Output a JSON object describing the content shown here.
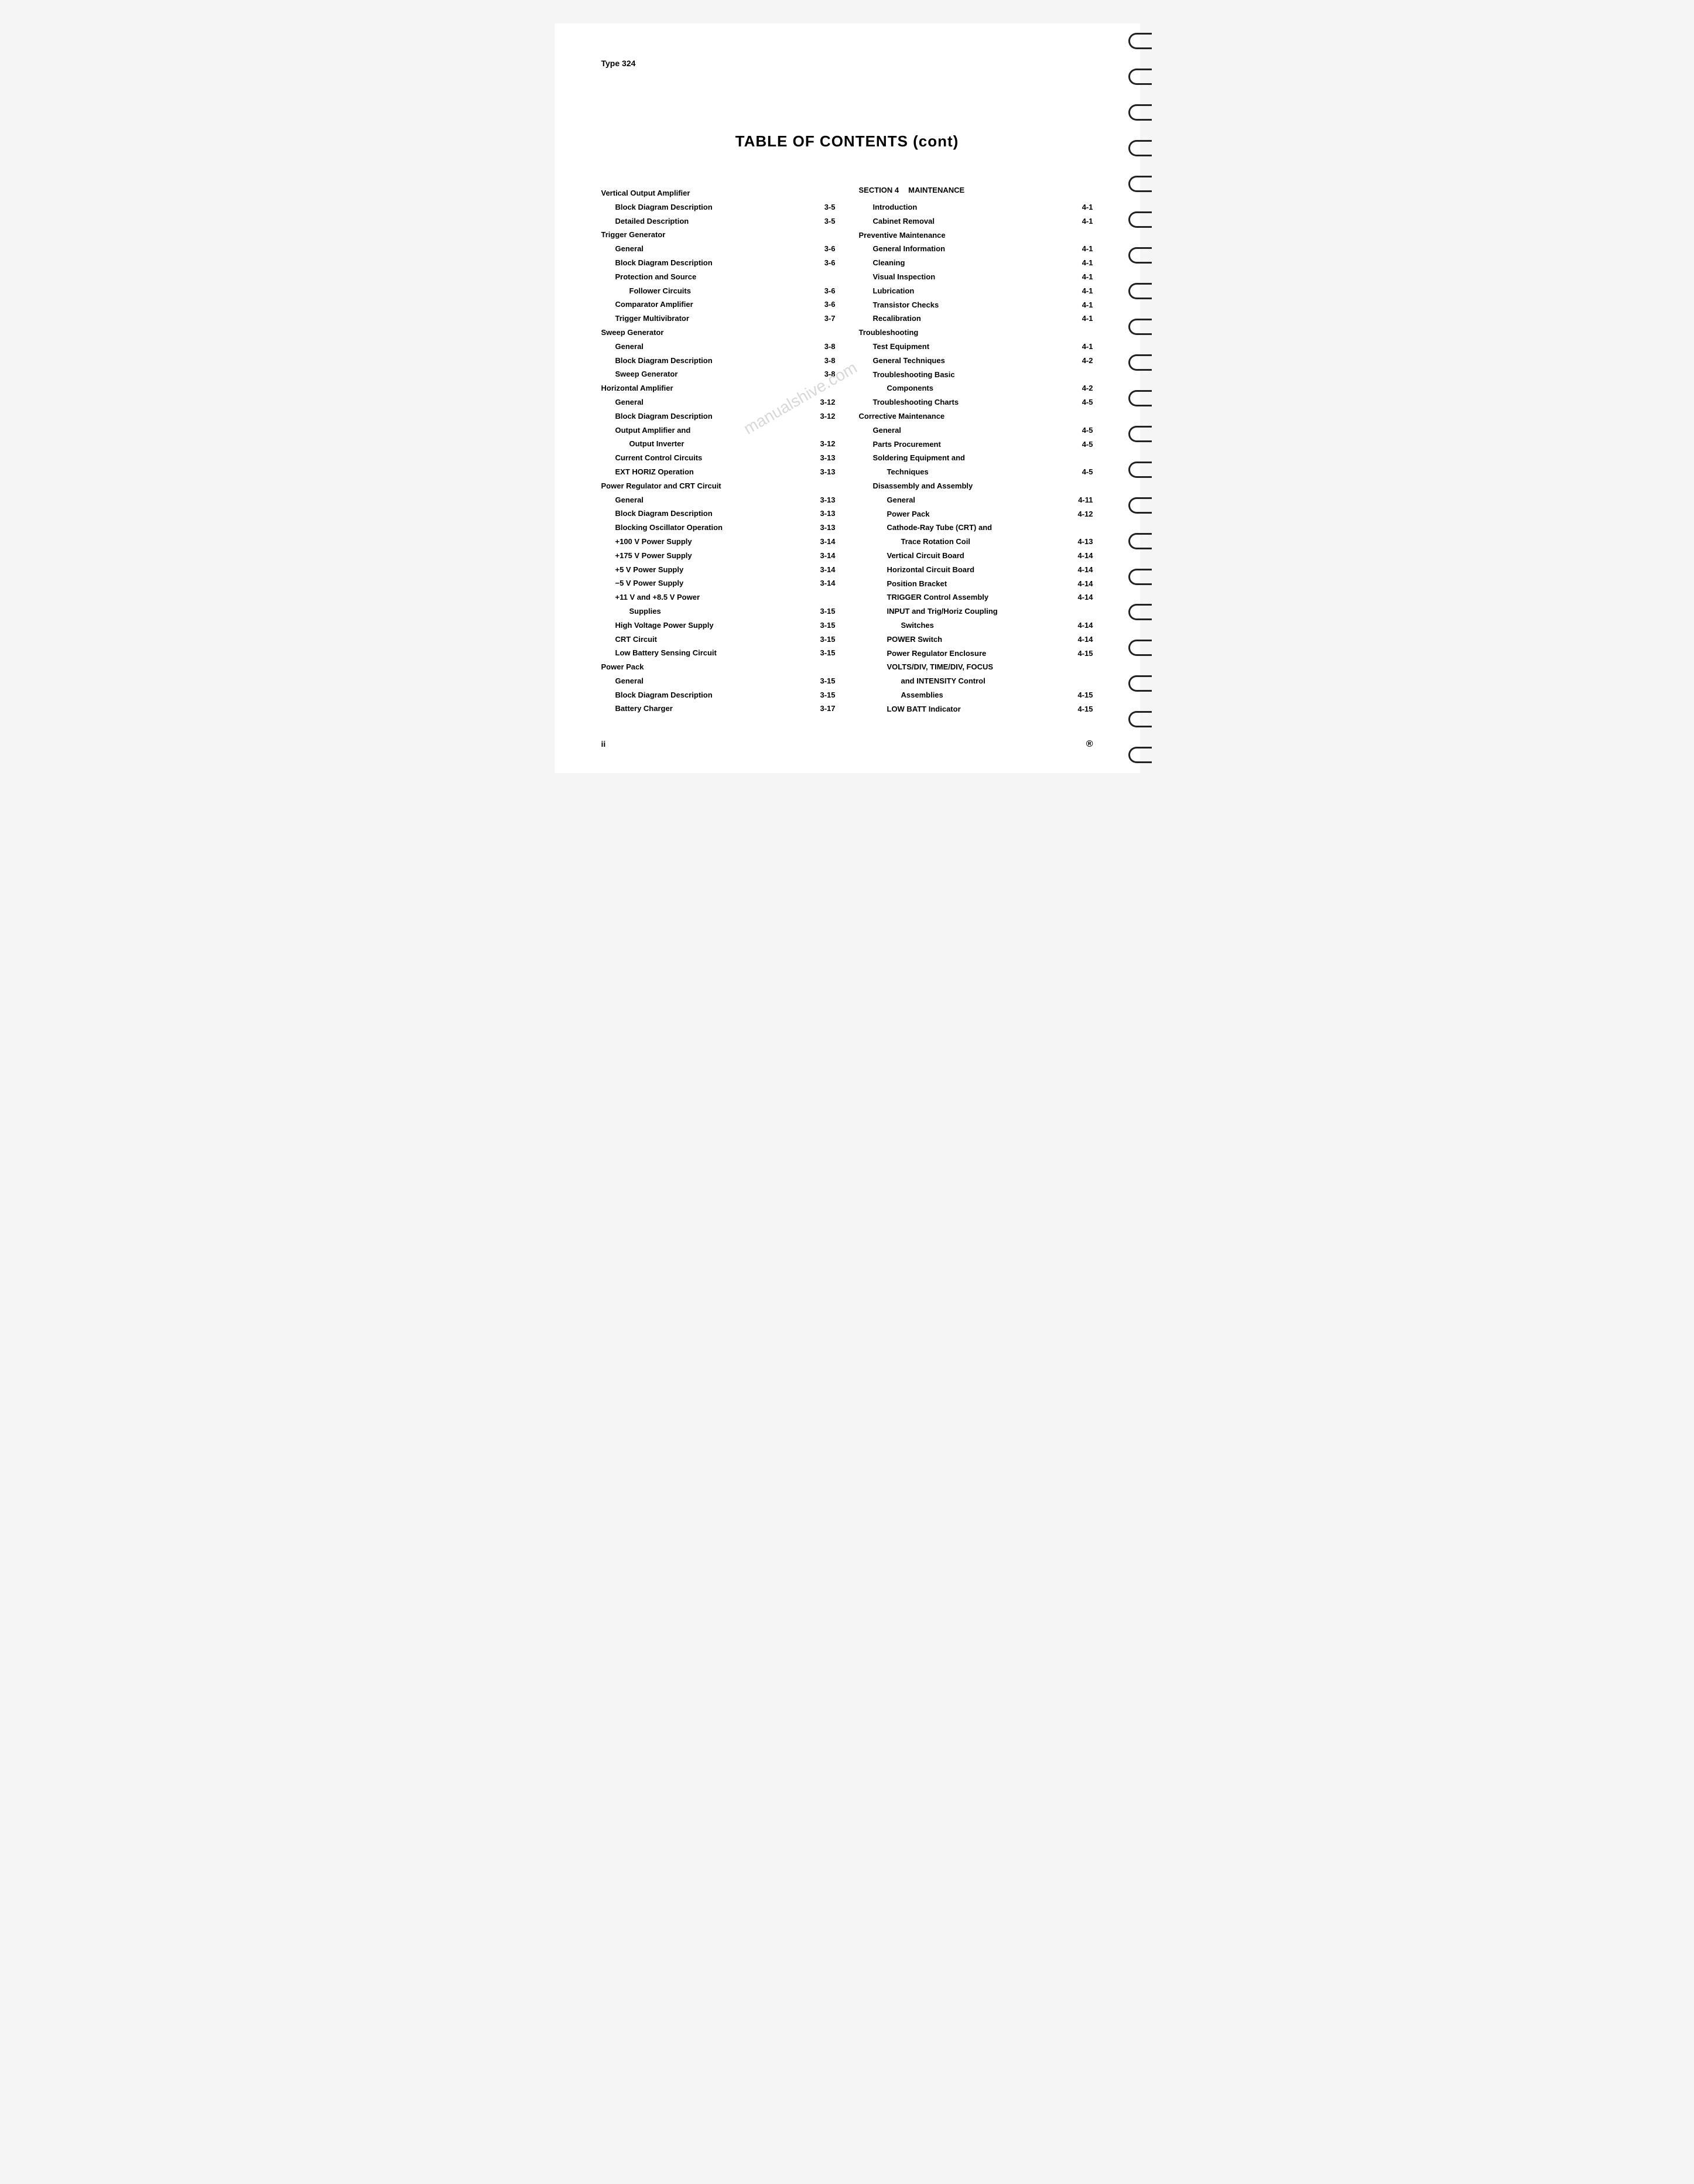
{
  "header_type": "Type 324",
  "title": "TABLE OF CONTENTS (cont)",
  "watermark": "manualshive.com",
  "footer_page": "ii",
  "footer_mark": "®",
  "left_column": [
    {
      "label": "Vertical Output Amplifier",
      "page": "",
      "indent": 0
    },
    {
      "label": "Block Diagram Description",
      "page": "3-5",
      "indent": 1
    },
    {
      "label": "Detailed Description",
      "page": "3-5",
      "indent": 1
    },
    {
      "label": "Trigger Generator",
      "page": "",
      "indent": 0
    },
    {
      "label": "General",
      "page": "3-6",
      "indent": 1
    },
    {
      "label": "Block Diagram Description",
      "page": "3-6",
      "indent": 1
    },
    {
      "label": "Protection and Source",
      "page": "",
      "indent": 1
    },
    {
      "label": "Follower Circuits",
      "page": "3-6",
      "indent": 2
    },
    {
      "label": "Comparator Amplifier",
      "page": "3-6",
      "indent": 1
    },
    {
      "label": "Trigger Multivibrator",
      "page": "3-7",
      "indent": 1
    },
    {
      "label": "Sweep Generator",
      "page": "",
      "indent": 0
    },
    {
      "label": "General",
      "page": "3-8",
      "indent": 1
    },
    {
      "label": "Block Diagram Description",
      "page": "3-8",
      "indent": 1
    },
    {
      "label": "Sweep Generator",
      "page": "3-8",
      "indent": 1
    },
    {
      "label": "Horizontal Amplifier",
      "page": "",
      "indent": 0
    },
    {
      "label": "General",
      "page": "3-12",
      "indent": 1
    },
    {
      "label": "Block Diagram Description",
      "page": "3-12",
      "indent": 1
    },
    {
      "label": "Output Amplifier and",
      "page": "",
      "indent": 1
    },
    {
      "label": "Output Inverter",
      "page": "3-12",
      "indent": 2
    },
    {
      "label": "Current Control Circuits",
      "page": "3-13",
      "indent": 1
    },
    {
      "label": "EXT HORIZ Operation",
      "page": "3-13",
      "indent": 1
    },
    {
      "label": "Power Regulator and CRT Circuit",
      "page": "",
      "indent": 0
    },
    {
      "label": "General",
      "page": "3-13",
      "indent": 1
    },
    {
      "label": "Block Diagram Description",
      "page": "3-13",
      "indent": 1
    },
    {
      "label": "Blocking Oscillator Operation",
      "page": "3-13",
      "indent": 1
    },
    {
      "label": "+100 V Power Supply",
      "page": "3-14",
      "indent": 1
    },
    {
      "label": "+175 V Power Supply",
      "page": "3-14",
      "indent": 1
    },
    {
      "label": "+5 V Power Supply",
      "page": "3-14",
      "indent": 1
    },
    {
      "label": "−5 V Power Supply",
      "page": "3-14",
      "indent": 1
    },
    {
      "label": "+11 V and +8.5 V Power",
      "page": "",
      "indent": 1
    },
    {
      "label": "Supplies",
      "page": "3-15",
      "indent": 2
    },
    {
      "label": "High Voltage Power Supply",
      "page": "3-15",
      "indent": 1
    },
    {
      "label": "CRT Circuit",
      "page": "3-15",
      "indent": 1
    },
    {
      "label": "Low Battery Sensing Circuit",
      "page": "3-15",
      "indent": 1
    },
    {
      "label": "Power Pack",
      "page": "",
      "indent": 0
    },
    {
      "label": "General",
      "page": "3-15",
      "indent": 1
    },
    {
      "label": "Block Diagram Description",
      "page": "3-15",
      "indent": 1
    },
    {
      "label": "Battery Charger",
      "page": "3-17",
      "indent": 1
    }
  ],
  "right_section_label": "SECTION 4",
  "right_section_title": "MAINTENANCE",
  "right_column": [
    {
      "label": "Introduction",
      "page": "4-1",
      "indent": 1
    },
    {
      "label": "Cabinet Removal",
      "page": "4-1",
      "indent": 1
    },
    {
      "label": "Preventive Maintenance",
      "page": "",
      "indent": 0
    },
    {
      "label": "General Information",
      "page": "4-1",
      "indent": 1
    },
    {
      "label": "Cleaning",
      "page": "4-1",
      "indent": 1
    },
    {
      "label": "Visual Inspection",
      "page": "4-1",
      "indent": 1
    },
    {
      "label": "Lubrication",
      "page": "4-1",
      "indent": 1
    },
    {
      "label": "Transistor Checks",
      "page": "4-1",
      "indent": 1
    },
    {
      "label": "Recalibration",
      "page": "4-1",
      "indent": 1
    },
    {
      "label": "Troubleshooting",
      "page": "",
      "indent": 0
    },
    {
      "label": "Test Equipment",
      "page": "4-1",
      "indent": 1
    },
    {
      "label": "General Techniques",
      "page": "4-2",
      "indent": 1
    },
    {
      "label": "Troubleshooting Basic",
      "page": "",
      "indent": 1
    },
    {
      "label": "Components",
      "page": "4-2",
      "indent": 2
    },
    {
      "label": "Troubleshooting Charts",
      "page": "4-5",
      "indent": 1
    },
    {
      "label": "Corrective Maintenance",
      "page": "",
      "indent": 0
    },
    {
      "label": "General",
      "page": "4-5",
      "indent": 1
    },
    {
      "label": "Parts Procurement",
      "page": "4-5",
      "indent": 1
    },
    {
      "label": "Soldering Equipment and",
      "page": "",
      "indent": 1
    },
    {
      "label": "Techniques",
      "page": "4-5",
      "indent": 2
    },
    {
      "label": "Disassembly and Assembly",
      "page": "",
      "indent": 1
    },
    {
      "label": "General",
      "page": "4-11",
      "indent": 2
    },
    {
      "label": "Power Pack",
      "page": "4-12",
      "indent": 2
    },
    {
      "label": "Cathode-Ray Tube (CRT) and",
      "page": "",
      "indent": 2
    },
    {
      "label": "Trace Rotation Coil",
      "page": "4-13",
      "indent": 3
    },
    {
      "label": "Vertical Circuit Board",
      "page": "4-14",
      "indent": 2
    },
    {
      "label": "Horizontal Circuit Board",
      "page": "4-14",
      "indent": 2
    },
    {
      "label": "Position Bracket",
      "page": "4-14",
      "indent": 2
    },
    {
      "label": "TRIGGER Control Assembly",
      "page": "4-14",
      "indent": 2
    },
    {
      "label": "INPUT and Trig/Horiz Coupling",
      "page": "",
      "indent": 2
    },
    {
      "label": "Switches",
      "page": "4-14",
      "indent": 3
    },
    {
      "label": "POWER Switch",
      "page": "4-14",
      "indent": 2
    },
    {
      "label": "Power Regulator Enclosure",
      "page": "4-15",
      "indent": 2
    },
    {
      "label": "VOLTS/DIV, TIME/DIV, FOCUS",
      "page": "",
      "indent": 2
    },
    {
      "label": "and INTENSITY Control",
      "page": "",
      "indent": 3
    },
    {
      "label": "Assemblies",
      "page": "4-15",
      "indent": 3
    },
    {
      "label": "LOW BATT Indicator",
      "page": "4-15",
      "indent": 2
    }
  ]
}
